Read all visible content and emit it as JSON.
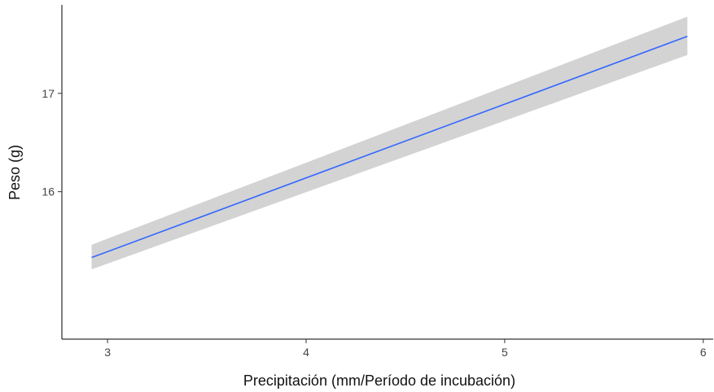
{
  "chart_data": {
    "type": "line",
    "xlabel": "Precipitación (mm/Período de incubación)",
    "ylabel": "Peso (g)",
    "xlim": [
      2.77,
      6.05
    ],
    "ylim": [
      14.5,
      17.9
    ],
    "x_ticks": [
      3,
      4,
      5,
      6
    ],
    "x_tick_labels": [
      "3",
      "4",
      "5",
      "6"
    ],
    "y_ticks": [
      16,
      17
    ],
    "y_tick_labels": [
      "16",
      "17"
    ],
    "grid": false,
    "legend": "none",
    "series": [
      {
        "x": [
          2.92,
          5.92
        ],
        "y": [
          15.33,
          17.58
        ],
        "ci_lower": [
          15.21,
          17.39
        ],
        "ci_upper": [
          15.46,
          17.78
        ],
        "color": "#3366FF",
        "band_color": "#d3d3d3"
      }
    ]
  }
}
